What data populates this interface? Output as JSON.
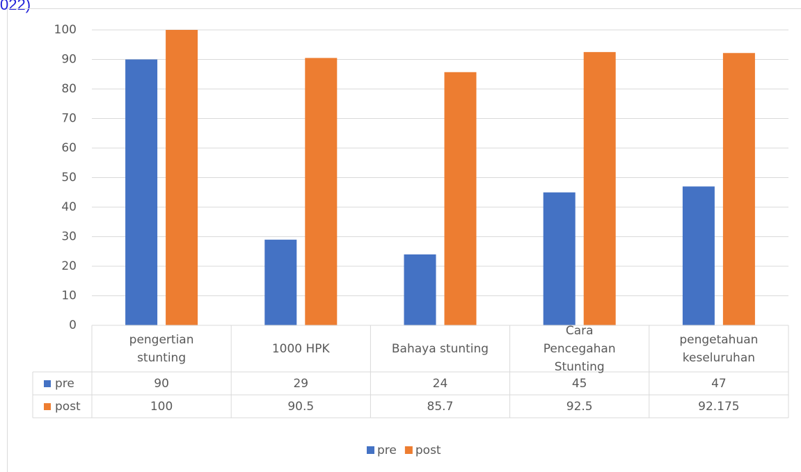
{
  "caption_fragment": "022)",
  "chart_data": {
    "type": "bar",
    "categories": [
      "pengertian stunting",
      "1000 HPK",
      "Bahaya stunting",
      "Cara Pencegahan Stunting",
      "pengetahuan keseluruhan"
    ],
    "series": [
      {
        "name": "pre",
        "color": "#4472c4",
        "values": [
          90,
          29,
          24,
          45,
          47
        ]
      },
      {
        "name": "post",
        "color": "#ed7d31",
        "values": [
          100,
          90.5,
          85.7,
          92.5,
          92.175
        ]
      }
    ],
    "ylim": [
      0,
      100
    ],
    "yticks": [
      0,
      10,
      20,
      30,
      40,
      50,
      60,
      70,
      80,
      90,
      100
    ],
    "grid": true,
    "data_table": true,
    "legend": "bottom"
  }
}
